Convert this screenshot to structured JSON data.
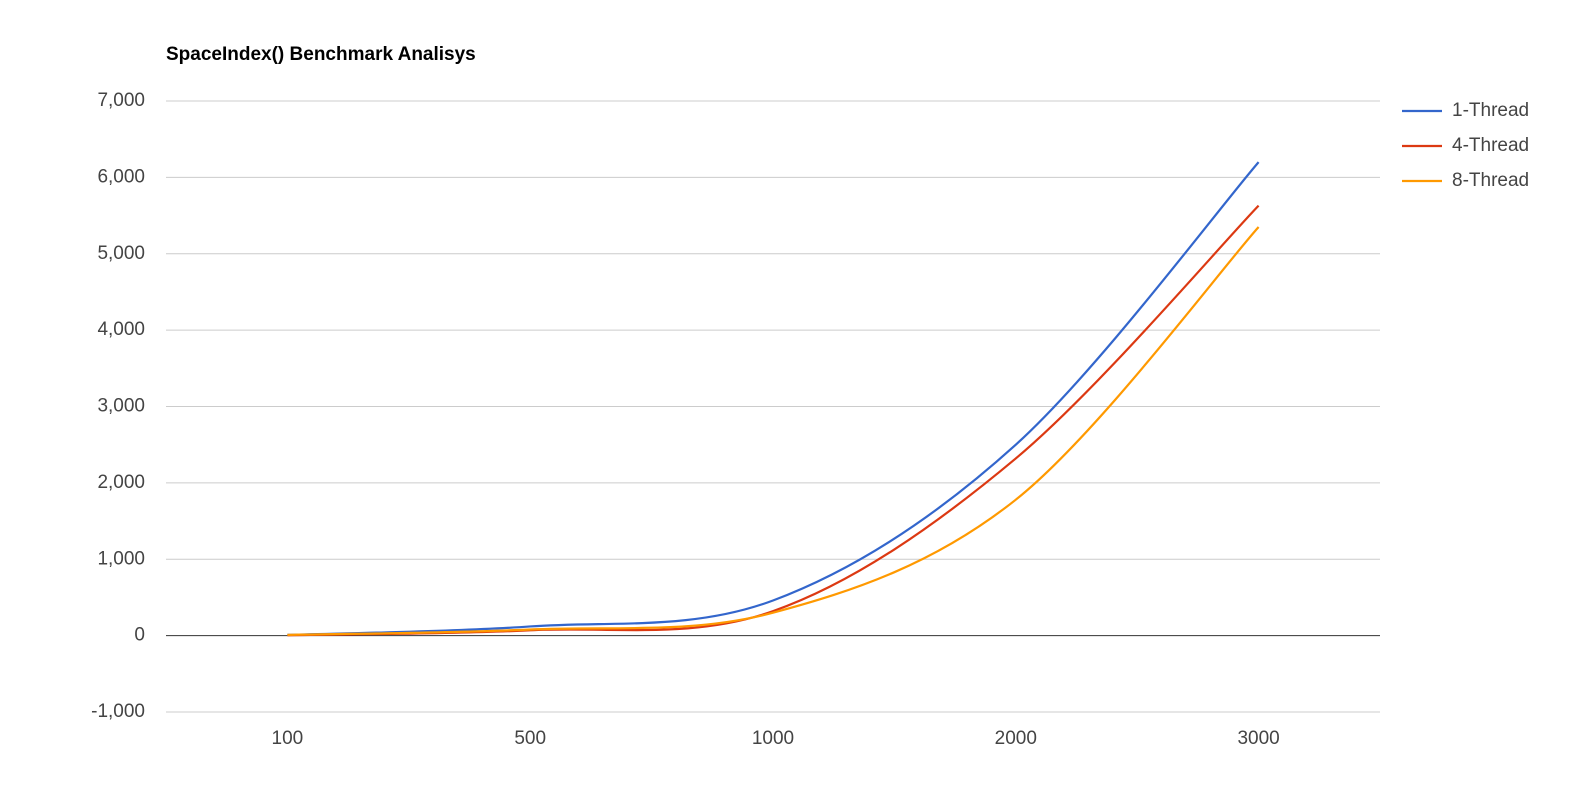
{
  "chart_data": {
    "type": "line",
    "title": "SpaceIndex() Benchmark Analisys",
    "categories": [
      "100",
      "500",
      "1000",
      "2000",
      "3000"
    ],
    "series": [
      {
        "name": "1-Thread",
        "color": "#3366cc",
        "values": [
          10,
          120,
          460,
          2500,
          6200
        ]
      },
      {
        "name": "4-Thread",
        "color": "#dc3912",
        "values": [
          5,
          70,
          320,
          2320,
          5630
        ]
      },
      {
        "name": "8-Thread",
        "color": "#ff9900",
        "values": [
          10,
          80,
          300,
          1780,
          5350
        ]
      }
    ],
    "ylim": [
      -1000,
      7000
    ],
    "yticks": [
      {
        "value": -1000,
        "label": "-1,000"
      },
      0,
      {
        "value": 1000,
        "label": "1,000"
      },
      {
        "value": 2000,
        "label": "2,000"
      },
      {
        "value": 3000,
        "label": "3,000"
      },
      {
        "value": 4000,
        "label": "4,000"
      },
      {
        "value": 5000,
        "label": "5,000"
      },
      {
        "value": 6000,
        "label": "6,000"
      },
      {
        "value": 7000,
        "label": "7,000"
      }
    ],
    "grid": true,
    "legend": "right",
    "smooth": true
  }
}
